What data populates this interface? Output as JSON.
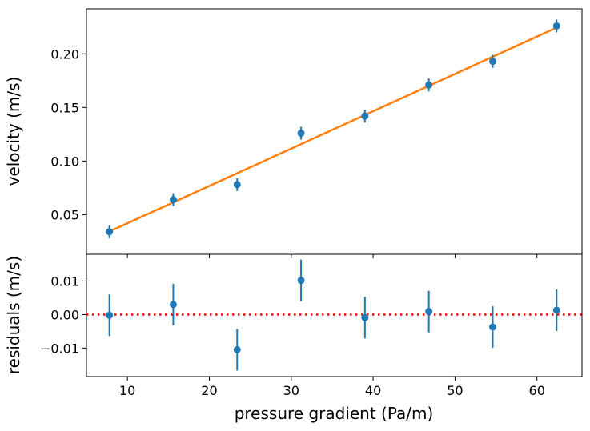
{
  "chart_data": [
    {
      "type": "scatter",
      "panel": "main",
      "title": "",
      "xlabel": "",
      "ylabel": "velocity (m/s)",
      "xlim": [
        5,
        65.5
      ],
      "ylim": [
        0.013,
        0.242
      ],
      "yticks": [
        0.05,
        0.1,
        0.15,
        0.2
      ],
      "ytick_labels": [
        "0.05",
        "0.10",
        "0.15",
        "0.20"
      ],
      "xticks": [
        10,
        20,
        30,
        40,
        50,
        60
      ],
      "grid": false,
      "series": [
        {
          "kind": "errorbar-points",
          "color": "#1f77b4",
          "x": [
            7.8,
            15.6,
            23.4,
            31.2,
            39.0,
            46.8,
            54.6,
            62.4
          ],
          "y": [
            0.034,
            0.064,
            0.078,
            0.126,
            0.142,
            0.171,
            0.193,
            0.226
          ],
          "yerr": [
            0.006,
            0.006,
            0.006,
            0.006,
            0.006,
            0.006,
            0.006,
            0.006
          ]
        },
        {
          "kind": "fit-line",
          "color": "#ff7f0e",
          "x": [
            7.8,
            62.4
          ],
          "y": [
            0.0343,
            0.2245
          ]
        }
      ]
    },
    {
      "type": "scatter",
      "panel": "residuals",
      "title": "",
      "xlabel": "pressure gradient (Pa/m)",
      "ylabel": "residuals (m/s)",
      "xlim": [
        5,
        65.5
      ],
      "ylim": [
        -0.0185,
        0.018
      ],
      "yticks": [
        -0.01,
        0.0,
        0.01
      ],
      "ytick_labels": [
        "−0.01",
        "0.00",
        "0.01"
      ],
      "xticks": [
        10,
        20,
        30,
        40,
        50,
        60
      ],
      "xtick_labels": [
        "10",
        "20",
        "30",
        "40",
        "50",
        "60"
      ],
      "grid": false,
      "series": [
        {
          "kind": "errorbar-points",
          "color": "#1f77b4",
          "x": [
            7.8,
            15.6,
            23.4,
            31.2,
            39.0,
            46.8,
            54.6,
            62.4
          ],
          "y": [
            -0.0002,
            0.003,
            -0.0105,
            0.0102,
            -0.0009,
            0.0009,
            -0.0037,
            0.0013
          ],
          "yerr": [
            0.0062,
            0.0062,
            0.0062,
            0.0062,
            0.0062,
            0.0062,
            0.0062,
            0.0062
          ]
        },
        {
          "kind": "zero-line",
          "color": "#ff0000",
          "style": "dotted",
          "y": 0
        }
      ]
    }
  ]
}
